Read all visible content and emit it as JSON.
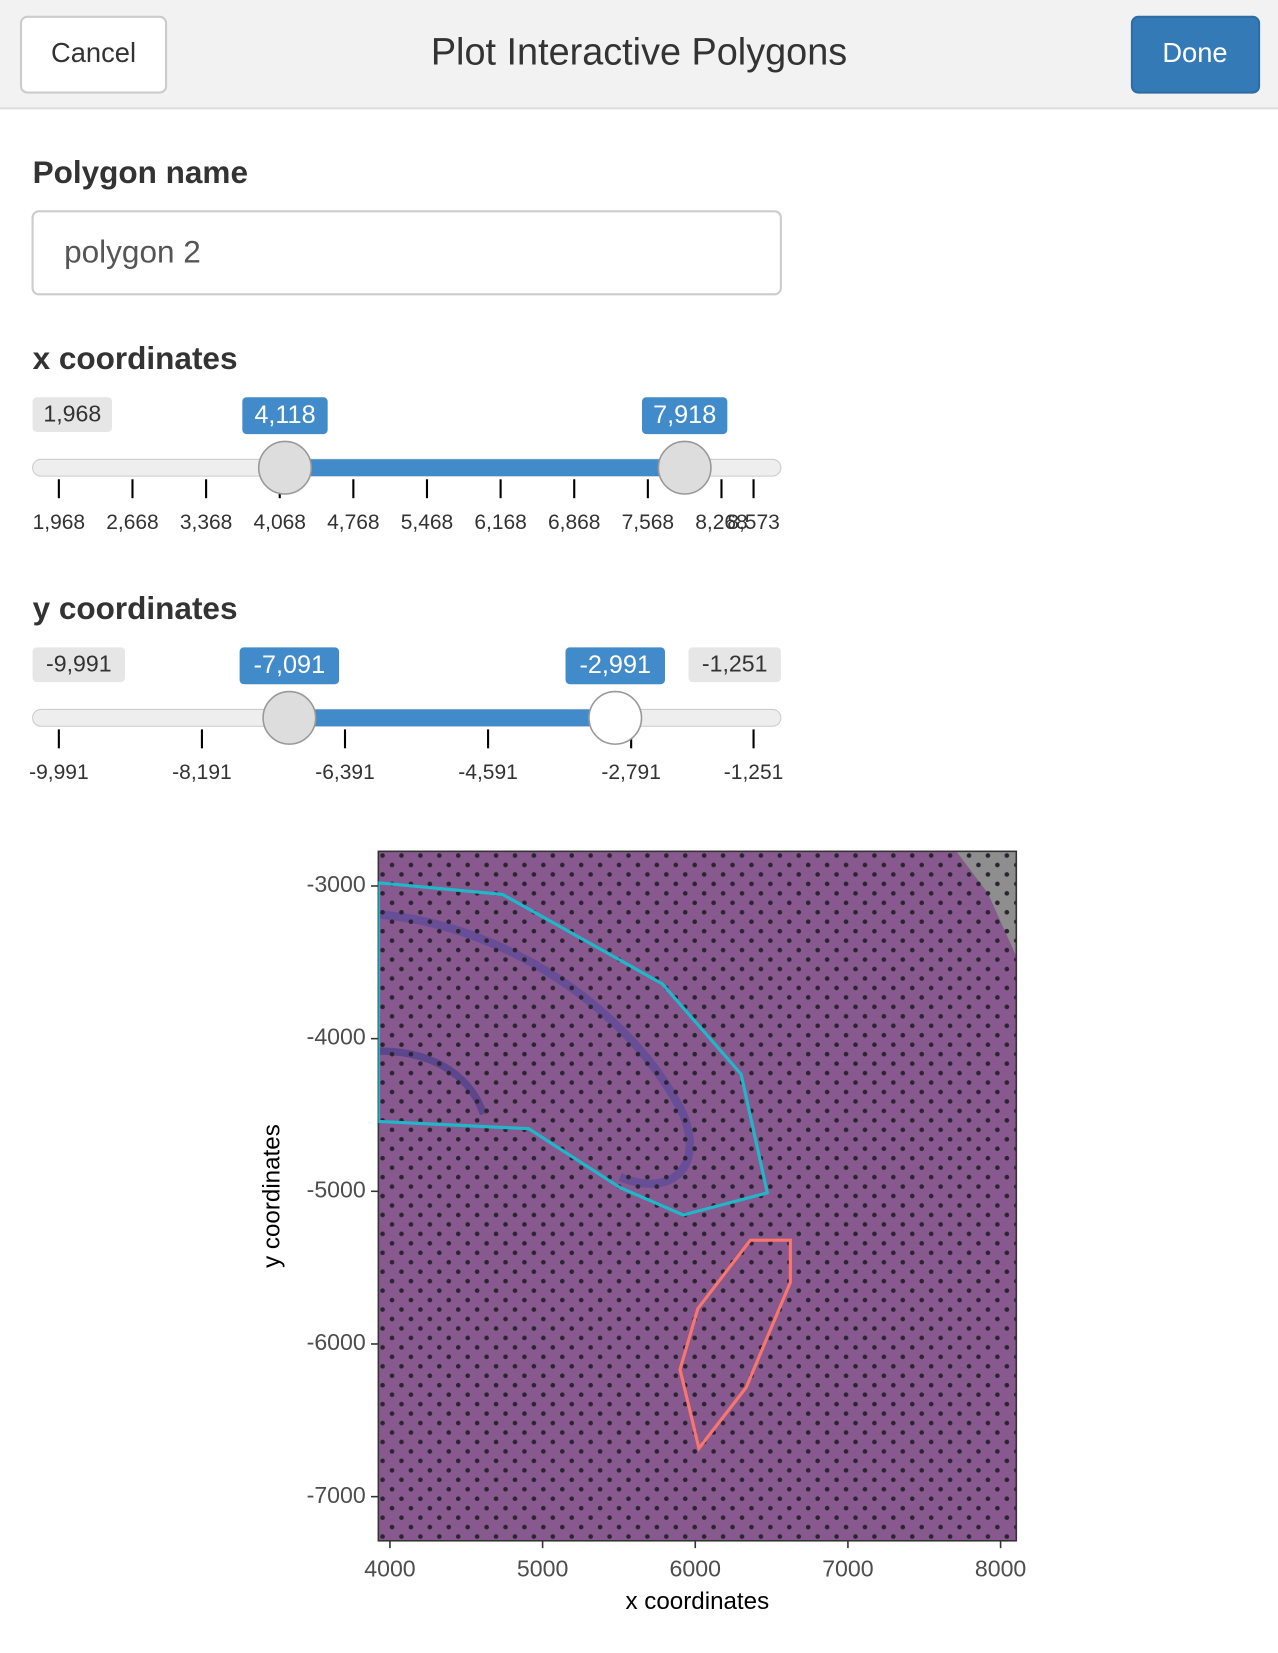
{
  "header": {
    "title": "Plot Interactive Polygons",
    "cancel": "Cancel",
    "done": "Done"
  },
  "form": {
    "name_label": "Polygon name",
    "name_value": "polygon 2",
    "x_slider": {
      "label": "x coordinates",
      "min": {
        "value": 1968,
        "label": "1,968"
      },
      "max": {
        "value": 8573,
        "label": "8,573"
      },
      "from": {
        "value": 4118,
        "label": "4,118"
      },
      "to": {
        "value": 7918,
        "label": "7,918"
      },
      "max_label_shown": false,
      "ticks": [
        {
          "value": 1968,
          "label": "1,968"
        },
        {
          "value": 2668,
          "label": "2,668"
        },
        {
          "value": 3368,
          "label": "3,368"
        },
        {
          "value": 4068,
          "label": "4,068"
        },
        {
          "value": 4768,
          "label": "4,768"
        },
        {
          "value": 5468,
          "label": "5,468"
        },
        {
          "value": 6168,
          "label": "6,168"
        },
        {
          "value": 6868,
          "label": "6,868"
        },
        {
          "value": 7568,
          "label": "7,568"
        },
        {
          "value": 8268,
          "label": "8,268"
        },
        {
          "value": 8573,
          "label": "8,573"
        }
      ]
    },
    "y_slider": {
      "label": "y coordinates",
      "min": {
        "value": -9991,
        "label": "-9,991"
      },
      "max": {
        "value": -1251,
        "label": "-1,251"
      },
      "from": {
        "value": -7091,
        "label": "-7,091"
      },
      "to": {
        "value": -2991,
        "label": "-2,991"
      },
      "max_label_shown": true,
      "ticks": [
        {
          "value": -9991,
          "label": "-9,991"
        },
        {
          "value": -8191,
          "label": "-8,191"
        },
        {
          "value": -6391,
          "label": "-6,391"
        },
        {
          "value": -4591,
          "label": "-4,591"
        },
        {
          "value": -2791,
          "label": "-2,791"
        },
        {
          "value": -1251,
          "label": "-1,251"
        }
      ]
    }
  },
  "plot": {
    "type": "polygon",
    "xlabel": "x coordinates",
    "ylabel": "y coordinates",
    "xlim": [
      3924,
      8103
    ],
    "ylim": [
      -7289,
      -2773
    ],
    "xticks": [
      4000,
      5000,
      6000,
      7000,
      8000
    ],
    "yticks": [
      -3000,
      -4000,
      -5000,
      -6000,
      -7000
    ],
    "series": [
      {
        "color": "#1fb8c9",
        "x": [
          3924,
          4737,
          5783,
          6300,
          6472,
          5921,
          5508,
          4909,
          3924
        ],
        "y": [
          -2979,
          -3055,
          -3640,
          -4232,
          -5010,
          -5155,
          -4976,
          -4590,
          -4542
        ]
      },
      {
        "color": "#f8766d",
        "x": [
          6361,
          6623,
          6623,
          6334,
          6024,
          5900,
          6017
        ],
        "y": [
          -5320,
          -5320,
          -5596,
          -6284,
          -6683,
          -6167,
          -5768
        ]
      }
    ]
  }
}
